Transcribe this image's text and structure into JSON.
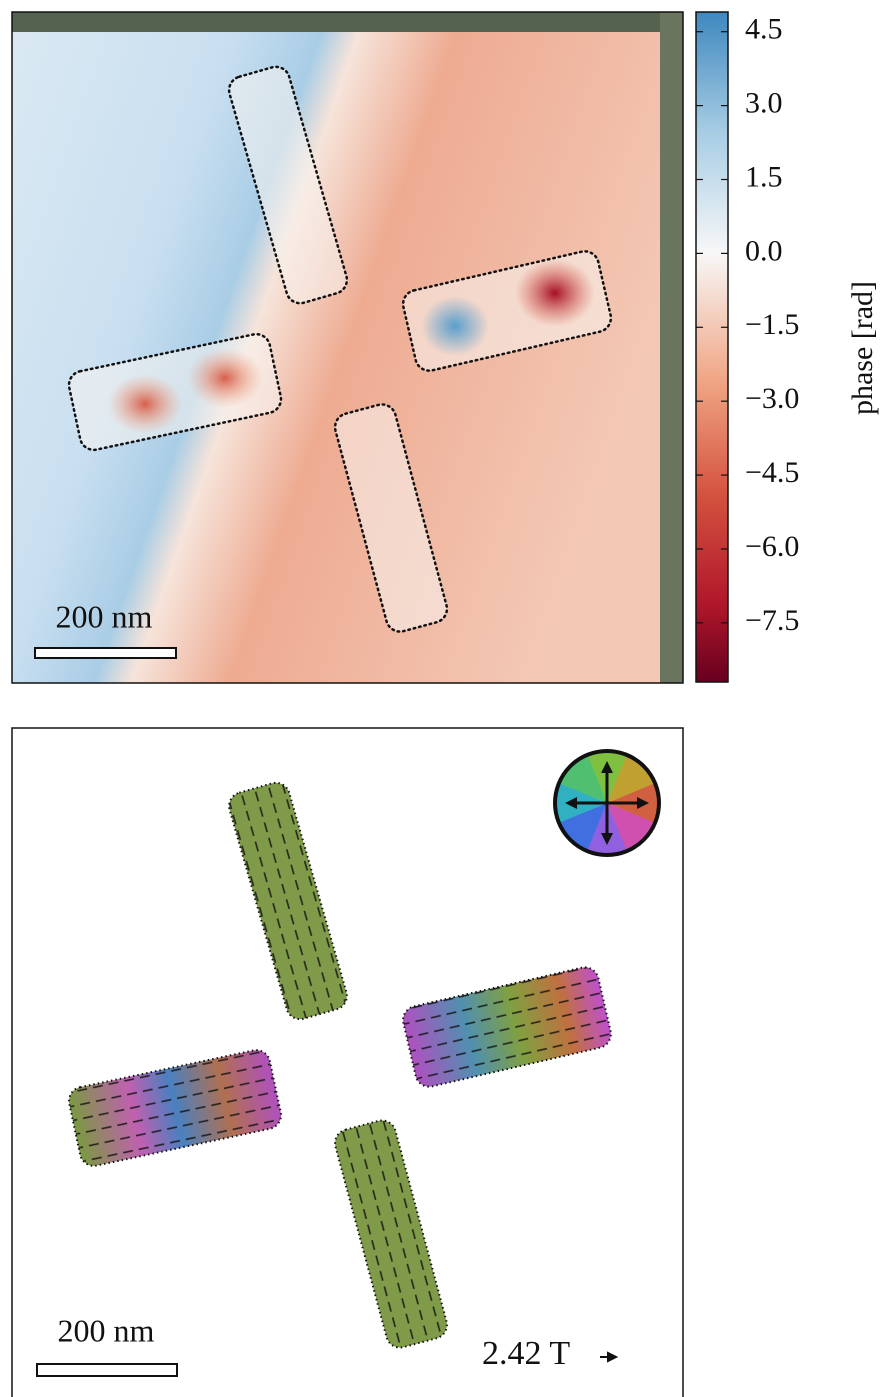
{
  "chart_data": [
    {
      "type": "heatmap",
      "colorbar_label": "phase [rad]",
      "clim": [
        -8.7,
        4.9
      ],
      "cticks": [
        4.5,
        {
          "value": 3,
          "label": "3.0"
        },
        1.5,
        {
          "value": 0,
          "label": "0.0"
        },
        {
          "value": -1.5,
          "label": "−1.5"
        },
        {
          "value": -3,
          "label": "−3.0"
        },
        {
          "value": -4.5,
          "label": "−4.5"
        },
        {
          "value": -6,
          "label": "−6.0"
        },
        {
          "value": -7.5,
          "label": "−7.5"
        }
      ],
      "scale_bar": "200 nm"
    },
    {
      "type": "vector-field",
      "scale_bar": "200 nm",
      "arrow_scale": "2.42 T"
    }
  ]
}
